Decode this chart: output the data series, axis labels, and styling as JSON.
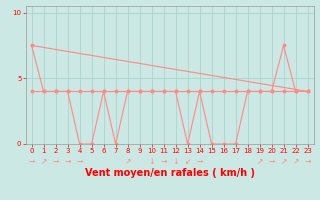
{
  "xlabel": "Vent moyen/en rafales ( km/h )",
  "bg_color": "#cce8e4",
  "line_color": "#ff8888",
  "grid_color": "#aad4cc",
  "xlim": [
    -0.5,
    23.5
  ],
  "ylim": [
    0,
    10.5
  ],
  "yticks": [
    0,
    5,
    10
  ],
  "xticks": [
    0,
    1,
    2,
    3,
    4,
    5,
    6,
    7,
    8,
    9,
    10,
    11,
    12,
    13,
    14,
    15,
    16,
    17,
    18,
    19,
    20,
    21,
    22,
    23
  ],
  "x": [
    0,
    1,
    2,
    3,
    4,
    5,
    6,
    7,
    8,
    9,
    10,
    11,
    12,
    13,
    14,
    15,
    16,
    17,
    18,
    19,
    20,
    21,
    22,
    23
  ],
  "y_moyen": [
    4,
    4,
    4,
    4,
    4,
    4,
    4,
    4,
    4,
    4,
    4,
    4,
    4,
    4,
    4,
    4,
    4,
    4,
    4,
    4,
    4,
    4,
    4,
    4
  ],
  "y_rafales": [
    7.5,
    4,
    4,
    4,
    0,
    0,
    4,
    0,
    4,
    4,
    4,
    4,
    4,
    0,
    4,
    0,
    0,
    0,
    4,
    4,
    4,
    7.5,
    4,
    4
  ],
  "trend_x": [
    0,
    23
  ],
  "trend_y": [
    7.5,
    4.0
  ],
  "arrows": [
    "→",
    "↗",
    "→",
    "→",
    "→",
    "",
    "",
    "",
    "↗",
    "",
    "↓",
    "→",
    "↓",
    "↙",
    "→",
    "",
    "",
    "",
    "",
    "↗",
    "→",
    "↗",
    "↗",
    "→"
  ],
  "label_fontsize": 6,
  "tick_fontsize": 5,
  "arrow_fontsize": 5.5,
  "xlabel_fontsize": 7
}
